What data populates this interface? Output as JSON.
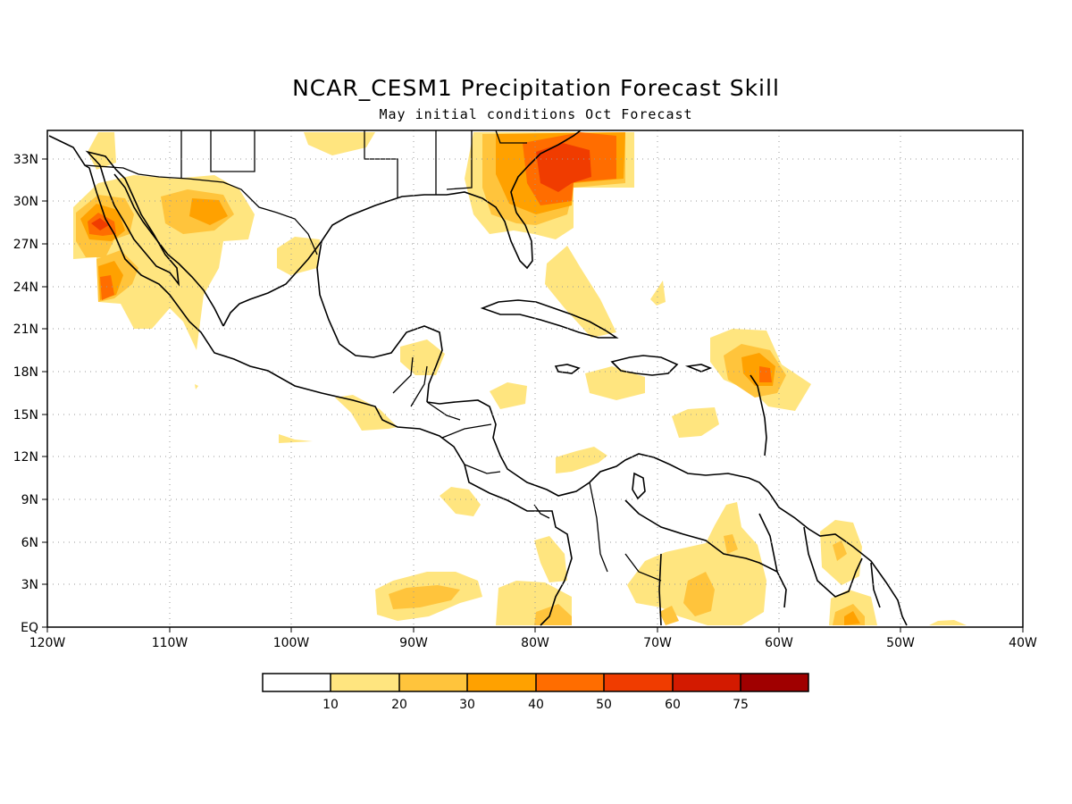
{
  "title": "NCAR_CESM1 Precipitation Forecast Skill",
  "subtitle": "May initial conditions  Oct Forecast",
  "map": {
    "lon_labels": [
      "120W",
      "110W",
      "100W",
      "90W",
      "80W",
      "70W",
      "60W",
      "50W",
      "40W"
    ],
    "lat_labels": [
      "EQ",
      "3N",
      "6N",
      "9N",
      "12N",
      "15N",
      "18N",
      "21N",
      "24N",
      "27N",
      "30N",
      "33N"
    ],
    "grid": "dotted",
    "projection": "lat-lon, 120W-40W, 0-35N"
  },
  "colorbar": {
    "labels": [
      "10",
      "20",
      "30",
      "40",
      "50",
      "60",
      "75"
    ],
    "colors": [
      "#ffffff",
      "#ffe57f",
      "#ffc43c",
      "#ffa100",
      "#ff6d00",
      "#f03c00",
      "#d31a00",
      "#a00000"
    ]
  }
}
